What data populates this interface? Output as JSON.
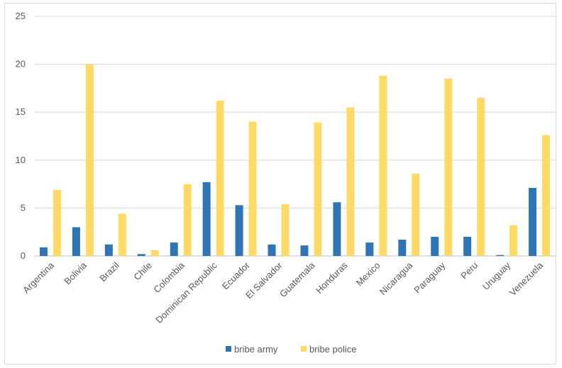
{
  "chart_data": {
    "type": "bar",
    "title": "",
    "xlabel": "",
    "ylabel": "",
    "ylim": [
      0,
      25
    ],
    "yticks": [
      0,
      5,
      10,
      15,
      20,
      25
    ],
    "grid": true,
    "legend_position": "bottom",
    "categories": [
      "Argentina",
      "Bolivia",
      "Brazil",
      "Chile",
      "Colombia",
      "Dominican Republic",
      "Ecuador",
      "El Salvador",
      "Guatemala",
      "Honduras",
      "Mexico",
      "Nicaragua",
      "Paraguay",
      "Peru",
      "Uruguay",
      "Venezuela"
    ],
    "series": [
      {
        "name": "bribe army",
        "color": "#2e75b6",
        "values": [
          0.9,
          3.0,
          1.2,
          0.2,
          1.4,
          7.7,
          5.3,
          1.2,
          1.1,
          5.6,
          1.4,
          1.7,
          2.0,
          2.0,
          0.1,
          7.1
        ]
      },
      {
        "name": "bribe police",
        "color": "#ffd966",
        "values": [
          6.9,
          20.0,
          4.4,
          0.6,
          7.5,
          16.2,
          14.0,
          5.4,
          13.9,
          15.5,
          18.8,
          8.6,
          18.5,
          16.5,
          3.2,
          12.6
        ]
      }
    ]
  }
}
